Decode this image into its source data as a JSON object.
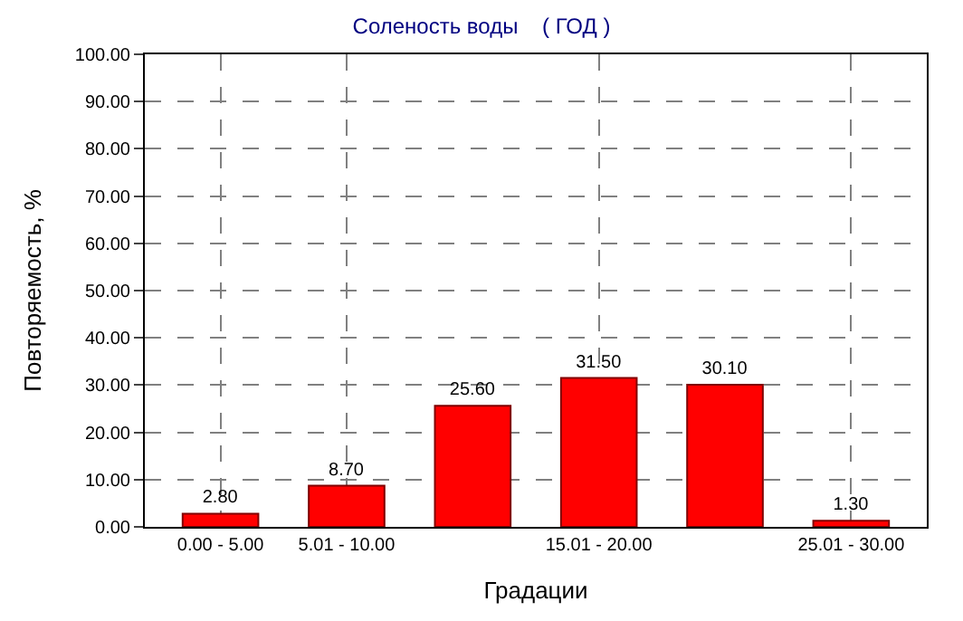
{
  "chart_data": {
    "type": "bar",
    "title": "Соленость воды    ( ГОД )",
    "xlabel": "Градации",
    "ylabel": "Повторяемость, %",
    "categories": [
      "0.00 - 5.00",
      "5.01 - 10.00",
      null,
      "15.01 - 20.00",
      null,
      "25.01 - 30.00"
    ],
    "values": [
      2.8,
      8.7,
      25.6,
      31.5,
      30.1,
      1.3
    ],
    "value_labels": [
      "2.80",
      "8.70",
      "25.60",
      "31.50",
      "30.10",
      "1.30"
    ],
    "color": "#ff0000",
    "ylim": [
      0,
      100
    ],
    "yticks": [
      {
        "value": 0,
        "label": "0.00"
      },
      {
        "value": 10,
        "label": "10.00"
      },
      {
        "value": 20,
        "label": "20.00"
      },
      {
        "value": 30,
        "label": "30.00"
      },
      {
        "value": 40,
        "label": "40.00"
      },
      {
        "value": 50,
        "label": "50.00"
      },
      {
        "value": 60,
        "label": "60.00"
      },
      {
        "value": 70,
        "label": "70.00"
      },
      {
        "value": 80,
        "label": "80.00"
      },
      {
        "value": 90,
        "label": "90.00"
      },
      {
        "value": 100,
        "label": "100.00"
      }
    ],
    "grid": true,
    "legend": false,
    "line_style": "dashed"
  }
}
